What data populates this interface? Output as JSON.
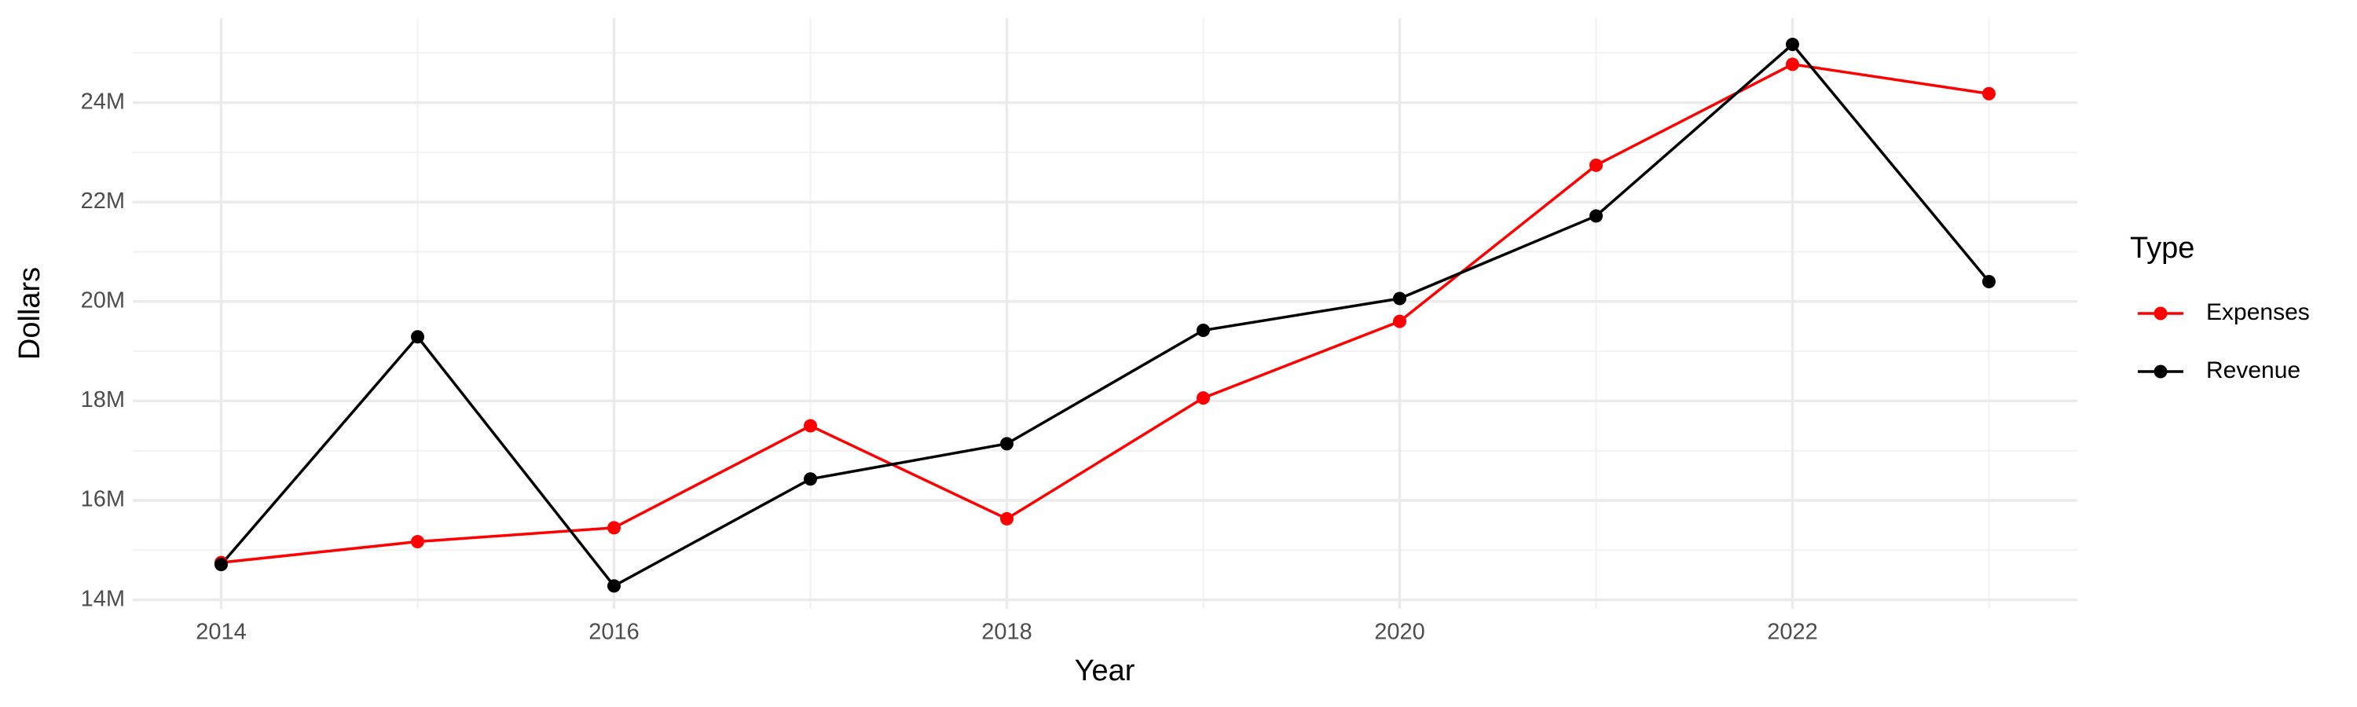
{
  "chart_data": {
    "type": "line",
    "x_label": "Year",
    "y_label": "Dollars",
    "legend_title": "Type",
    "legend": "right",
    "grid": true,
    "x": [
      2014,
      2015,
      2016,
      2017,
      2018,
      2019,
      2020,
      2021,
      2022,
      2023
    ],
    "series": [
      {
        "name": "Expenses",
        "color": "#ff0000",
        "values": [
          14750000,
          15170000,
          15450000,
          17500000,
          15630000,
          18060000,
          19600000,
          22740000,
          24770000,
          24180000
        ]
      },
      {
        "name": "Revenue",
        "color": "#000000",
        "values": [
          14710000,
          19290000,
          14280000,
          16430000,
          17140000,
          19420000,
          20060000,
          21720000,
          25170000,
          20400000
        ]
      }
    ],
    "xlim": [
      2013.55,
      2023.45
    ],
    "xticks": [
      2014,
      2016,
      2018,
      2020,
      2022
    ],
    "ylim": [
      13820000,
      25700000
    ],
    "yticks": [
      {
        "value": 14000000,
        "label": "14M"
      },
      {
        "value": 16000000,
        "label": "16M"
      },
      {
        "value": 18000000,
        "label": "18M"
      },
      {
        "value": 20000000,
        "label": "20M"
      },
      {
        "value": 22000000,
        "label": "22M"
      },
      {
        "value": 24000000,
        "label": "24M"
      }
    ]
  }
}
